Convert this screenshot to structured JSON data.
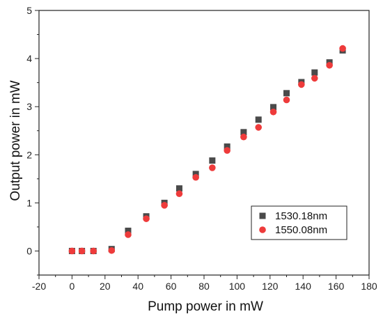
{
  "chart_data": {
    "type": "scatter",
    "title": "",
    "xlabel": "Pump power in mW",
    "ylabel": "Output power in mW",
    "xlim": [
      -20,
      180
    ],
    "ylim": [
      -0.5,
      5
    ],
    "xticks": [
      -20,
      0,
      20,
      40,
      60,
      80,
      100,
      120,
      140,
      160,
      180
    ],
    "yticks": [
      0,
      1,
      2,
      3,
      4,
      5
    ],
    "grid": false,
    "legend_position": "lower-right",
    "series": [
      {
        "name": "1530.18nm",
        "marker": "square",
        "color": "#4a4a4a",
        "x": [
          0,
          6,
          13,
          24,
          34,
          45,
          56,
          65,
          75,
          85,
          94,
          104,
          113,
          122,
          130,
          139,
          147,
          156,
          164
        ],
        "y": [
          0,
          0,
          0,
          0.04,
          0.42,
          0.72,
          1.0,
          1.3,
          1.6,
          1.88,
          2.17,
          2.47,
          2.73,
          2.99,
          3.28,
          3.51,
          3.71,
          3.92,
          4.17
        ]
      },
      {
        "name": "1550.08nm",
        "marker": "circle",
        "color": "#ee3b3b",
        "x": [
          0,
          6,
          13,
          24,
          34,
          45,
          56,
          65,
          75,
          85,
          94,
          104,
          113,
          122,
          130,
          139,
          147,
          156,
          164
        ],
        "y": [
          0,
          0,
          0,
          0.01,
          0.34,
          0.67,
          0.95,
          1.19,
          1.53,
          1.73,
          2.09,
          2.37,
          2.57,
          2.89,
          3.14,
          3.46,
          3.59,
          3.86,
          4.21
        ]
      }
    ]
  }
}
